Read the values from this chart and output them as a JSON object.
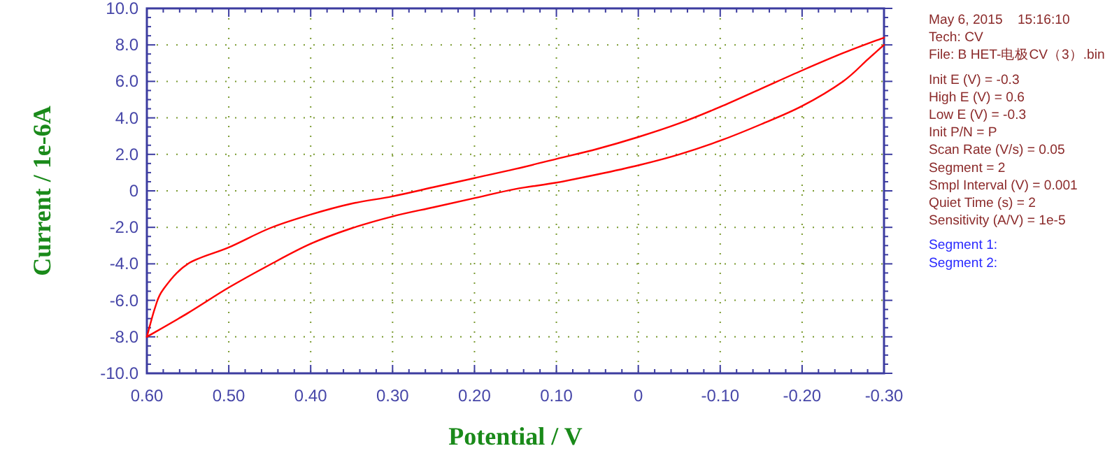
{
  "chart_data": {
    "type": "line",
    "xlabel": "Potential / V",
    "ylabel": "Current / 1e-6A",
    "xlim": [
      0.6,
      -0.3
    ],
    "ylim": [
      -10,
      10
    ],
    "xticks": [
      {
        "value": 0.6,
        "label": "0.60"
      },
      {
        "value": 0.5,
        "label": "0.50"
      },
      {
        "value": 0.4,
        "label": "0.40"
      },
      {
        "value": 0.3,
        "label": "0.30"
      },
      {
        "value": 0.2,
        "label": "0.20"
      },
      {
        "value": 0.1,
        "label": "0.10"
      },
      0,
      {
        "value": -0.1,
        "label": "-0.10"
      },
      {
        "value": -0.2,
        "label": "-0.20"
      },
      {
        "value": -0.3,
        "label": "-0.30"
      }
    ],
    "yticks": [
      {
        "value": 10,
        "label": "10.0"
      },
      {
        "value": 8,
        "label": "8.0"
      },
      {
        "value": 6,
        "label": "6.0"
      },
      {
        "value": 4,
        "label": "4.0"
      },
      {
        "value": 2,
        "label": "2.0"
      },
      0,
      {
        "value": -2,
        "label": "-2.0"
      },
      {
        "value": -4,
        "label": "-4.0"
      },
      {
        "value": -6,
        "label": "-6.0"
      },
      {
        "value": -8,
        "label": "-8.0"
      },
      {
        "value": -10,
        "label": "-10.0"
      }
    ],
    "grid": true,
    "marker": "none",
    "line_style": "solid",
    "series": [
      {
        "color": "#ff0000",
        "x": [
          0.6,
          0.59,
          0.58,
          0.55,
          0.5,
          0.45,
          0.4,
          0.35,
          0.3,
          0.25,
          0.2,
          0.15,
          0.1,
          0.05,
          0,
          -0.05,
          -0.1,
          -0.15,
          -0.2,
          -0.25,
          -0.3
        ],
        "values": [
          -8.0,
          -6.4,
          -5.4,
          -4.0,
          -3.1,
          -2.05,
          -1.3,
          -0.7,
          -0.3,
          0.2,
          0.7,
          1.2,
          1.75,
          2.3,
          2.95,
          3.7,
          4.6,
          5.6,
          6.6,
          7.55,
          8.4
        ]
      },
      {
        "color": "#ff0000",
        "x": [
          0.6,
          0.55,
          0.5,
          0.45,
          0.4,
          0.35,
          0.3,
          0.25,
          0.2,
          0.15,
          0.1,
          0.05,
          0,
          -0.05,
          -0.1,
          -0.15,
          -0.2,
          -0.25,
          -0.28,
          -0.3
        ],
        "values": [
          -8.0,
          -6.7,
          -5.3,
          -4.05,
          -2.9,
          -2.05,
          -1.4,
          -0.9,
          -0.4,
          0.1,
          0.45,
          0.9,
          1.4,
          2.0,
          2.75,
          3.65,
          4.65,
          6.0,
          7.2,
          8.0
        ]
      }
    ],
    "annotations": [
      "May 6, 2015    15:16:10",
      "Tech: CV",
      "File: B HET-电极CV（3）.bin",
      "Init E (V) = -0.3",
      "High E (V) = 0.6",
      "Low E (V) = -0.3",
      "Init P/N = P",
      "Scan Rate (V/s) = 0.05",
      "Segment = 2",
      "Smpl Interval (V) = 0.001",
      "Quiet Time (s) = 2",
      "Sensitivity (A/V) = 1e-5",
      "Segment 1:",
      "Segment 2:"
    ]
  }
}
